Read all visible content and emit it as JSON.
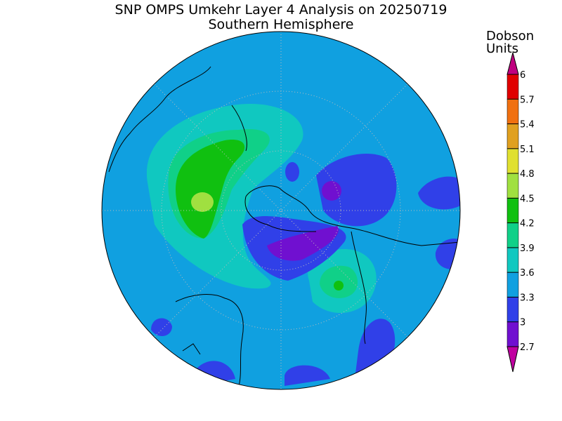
{
  "title": "SNP OMPS Umkehr Layer 4 Analysis on 20250719",
  "subtitle": "Southern Hemisphere",
  "colorbar": {
    "label": [
      "Dobson",
      "Units"
    ],
    "ticks": [
      2.7,
      3,
      3.3,
      3.6,
      3.9,
      4.2,
      4.5,
      4.8,
      5.1,
      5.4,
      5.7,
      6
    ],
    "colors": [
      "#c000a0",
      "#7010d0",
      "#3040e8",
      "#10a0e0",
      "#10c8c0",
      "#10d088",
      "#10c010",
      "#a0e040",
      "#e0e030",
      "#e0a020",
      "#f07010",
      "#e00000",
      "#c00080"
    ]
  }
}
